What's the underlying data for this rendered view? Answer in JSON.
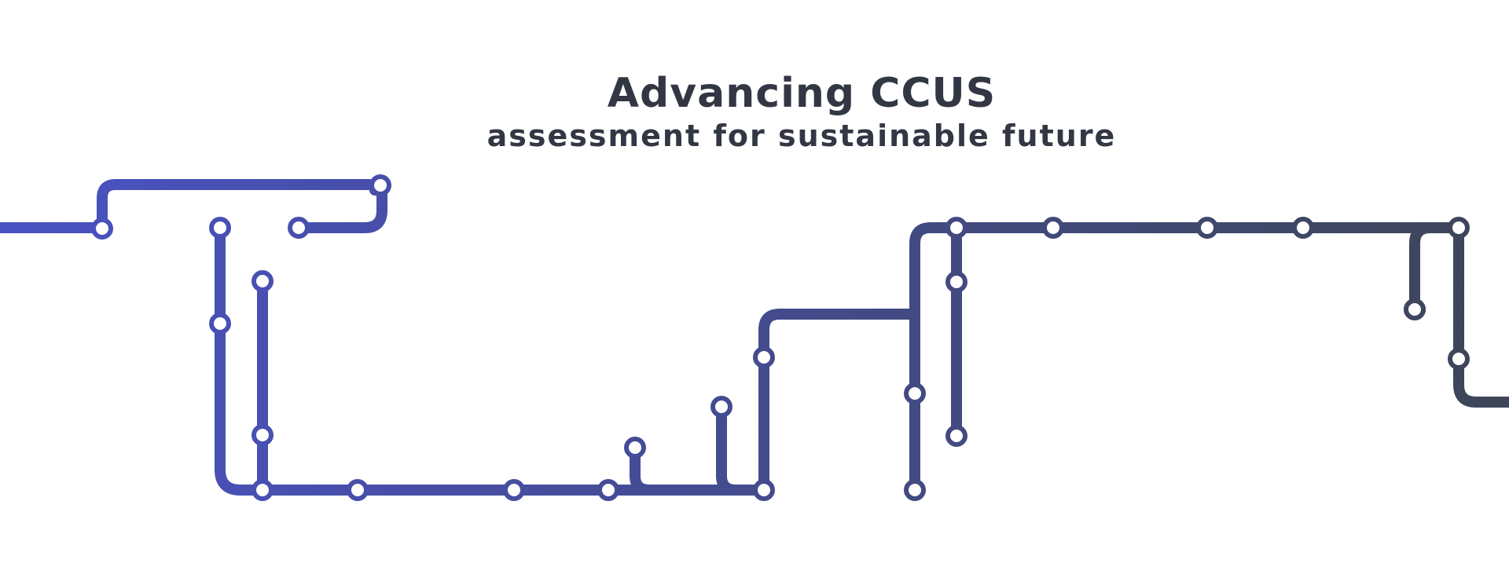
{
  "header": {
    "title": "Advancing CCUS",
    "subtitle": "assessment for sustainable future"
  },
  "colors": {
    "text": "#333744",
    "line_start": "#4a52c4",
    "line_end": "#3d4558",
    "station_fill": "#ffffff"
  },
  "map": {
    "stations": 27
  }
}
